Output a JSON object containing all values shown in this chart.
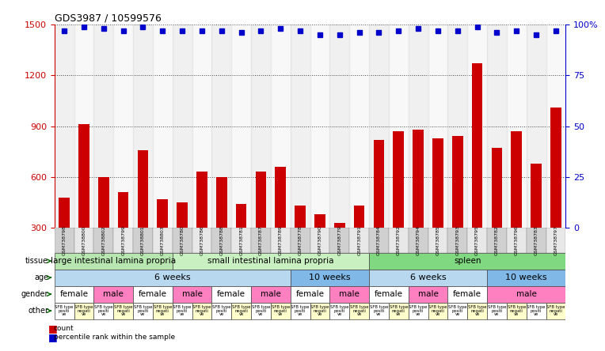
{
  "title": "GDS3987 / 10599576",
  "samples": [
    "GSM738798",
    "GSM738800",
    "GSM738802",
    "GSM738799",
    "GSM738801",
    "GSM738803",
    "GSM738780",
    "GSM738786",
    "GSM738788",
    "GSM738781",
    "GSM738787",
    "GSM738789",
    "GSM738778",
    "GSM738790",
    "GSM738779",
    "GSM738791",
    "GSM738784",
    "GSM738792",
    "GSM738794",
    "GSM738785",
    "GSM738793",
    "GSM738795",
    "GSM738782",
    "GSM738796",
    "GSM738783",
    "GSM738797"
  ],
  "counts": [
    480,
    910,
    600,
    510,
    760,
    470,
    450,
    630,
    600,
    440,
    630,
    660,
    430,
    380,
    330,
    430,
    820,
    870,
    880,
    830,
    840,
    1270,
    770,
    870,
    680,
    1010
  ],
  "percentile": [
    97,
    99,
    98,
    97,
    99,
    97,
    97,
    97,
    97,
    96,
    97,
    98,
    97,
    95,
    95,
    96,
    96,
    97,
    98,
    97,
    97,
    99,
    96,
    97,
    95,
    97
  ],
  "ylim_left": [
    300,
    1500
  ],
  "ylim_right": [
    0,
    100
  ],
  "yticks_left": [
    300,
    600,
    900,
    1200,
    1500
  ],
  "yticks_right": [
    0,
    25,
    50,
    75,
    100
  ],
  "bar_color": "#cc0000",
  "dot_color": "#0000cc",
  "tissue_groups": [
    {
      "label": "large intestinal lamina propria",
      "start": 0,
      "end": 5,
      "color": "#b8e6b0"
    },
    {
      "label": "small intestinal lamina propria",
      "start": 6,
      "end": 15,
      "color": "#c8f0c0"
    },
    {
      "label": "spleen",
      "start": 16,
      "end": 25,
      "color": "#80d880"
    }
  ],
  "age_groups": [
    {
      "label": "6 weeks",
      "start": 0,
      "end": 11,
      "color": "#b8d8f0"
    },
    {
      "label": "10 weeks",
      "start": 12,
      "end": 15,
      "color": "#80b8e8"
    },
    {
      "label": "6 weeks",
      "start": 16,
      "end": 21,
      "color": "#b8d8f0"
    },
    {
      "label": "10 weeks",
      "start": 22,
      "end": 25,
      "color": "#80b8e8"
    }
  ],
  "gender_groups": [
    {
      "label": "female",
      "start": 0,
      "end": 1,
      "color": "#ffffff"
    },
    {
      "label": "male",
      "start": 2,
      "end": 3,
      "color": "#ff80c0"
    },
    {
      "label": "female",
      "start": 4,
      "end": 5,
      "color": "#ffffff"
    },
    {
      "label": "male",
      "start": 6,
      "end": 7,
      "color": "#ff80c0"
    },
    {
      "label": "female",
      "start": 8,
      "end": 9,
      "color": "#ffffff"
    },
    {
      "label": "male",
      "start": 10,
      "end": 11,
      "color": "#ff80c0"
    },
    {
      "label": "female",
      "start": 12,
      "end": 13,
      "color": "#ffffff"
    },
    {
      "label": "male",
      "start": 14,
      "end": 15,
      "color": "#ff80c0"
    },
    {
      "label": "female",
      "start": 16,
      "end": 17,
      "color": "#ffffff"
    },
    {
      "label": "male",
      "start": 18,
      "end": 19,
      "color": "#ff80c0"
    },
    {
      "label": "female",
      "start": 20,
      "end": 21,
      "color": "#ffffff"
    },
    {
      "label": "male",
      "start": 22,
      "end": 25,
      "color": "#ff80c0"
    }
  ],
  "row_labels": [
    "tissue",
    "age",
    "gender",
    "other"
  ],
  "bg_color": "#ffffff"
}
